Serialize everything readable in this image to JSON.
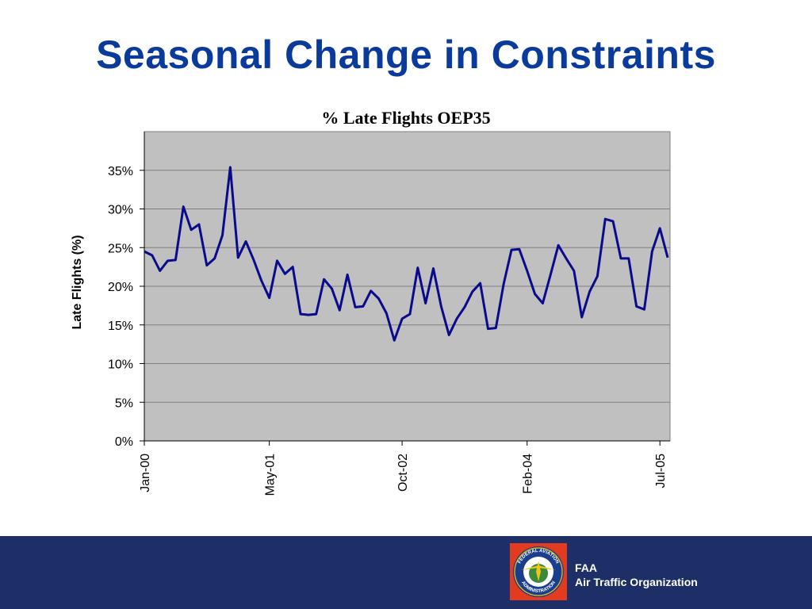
{
  "slide": {
    "title": "Seasonal Change in Constraints"
  },
  "footer": {
    "org_short": "FAA",
    "org_name": "Air Traffic Organization",
    "seal_text_top": "FEDERAL AVIATION",
    "seal_text_bottom": "ADMINISTRATION"
  },
  "colors": {
    "title": "#0a3a9a",
    "line": "#0a0a8c",
    "plot_bg": "#c0c0c0",
    "footer_bg": "#1d2f66"
  },
  "chart_data": {
    "type": "line",
    "title": "% Late Flights OEP35",
    "xlabel": "",
    "ylabel": "Late Flights (%)",
    "ylim": [
      0,
      40
    ],
    "yticks": [
      0,
      5,
      10,
      15,
      20,
      25,
      30,
      35
    ],
    "ytick_labels": [
      "0%",
      "5%",
      "10%",
      "15%",
      "20%",
      "25%",
      "30%",
      "35%"
    ],
    "xticks": [
      "Jan-00",
      "May-01",
      "Oct-02",
      "Feb-04",
      "Jul-05"
    ],
    "xtick_positions": [
      "2000-01",
      "2001-05",
      "2002-10",
      "2004-02",
      "2005-07"
    ],
    "grid": true,
    "legend": "none",
    "series": [
      {
        "values": [
          [
            "2000-01",
            24.5
          ],
          [
            "2000-02",
            24.0
          ],
          [
            "2000-03",
            22.0
          ],
          [
            "2000-04",
            23.3
          ],
          [
            "2000-05",
            23.4
          ],
          [
            "2000-06",
            30.3
          ],
          [
            "2000-07",
            27.3
          ],
          [
            "2000-08",
            28.0
          ],
          [
            "2000-09",
            22.7
          ],
          [
            "2000-10",
            23.6
          ],
          [
            "2000-11",
            26.6
          ],
          [
            "2000-12",
            35.4
          ],
          [
            "2001-01",
            23.7
          ],
          [
            "2001-02",
            25.8
          ],
          [
            "2001-03",
            23.4
          ],
          [
            "2001-04",
            20.7
          ],
          [
            "2001-05",
            18.5
          ],
          [
            "2001-06",
            23.3
          ],
          [
            "2001-07",
            21.6
          ],
          [
            "2001-08",
            22.5
          ],
          [
            "2001-09",
            16.4
          ],
          [
            "2001-10",
            16.3
          ],
          [
            "2001-11",
            16.4
          ],
          [
            "2001-12",
            20.9
          ],
          [
            "2002-01",
            19.7
          ],
          [
            "2002-02",
            16.9
          ],
          [
            "2002-03",
            21.5
          ],
          [
            "2002-04",
            17.3
          ],
          [
            "2002-05",
            17.4
          ],
          [
            "2002-06",
            19.4
          ],
          [
            "2002-07",
            18.4
          ],
          [
            "2002-08",
            16.5
          ],
          [
            "2002-09",
            13.0
          ],
          [
            "2002-10",
            15.8
          ],
          [
            "2002-11",
            16.4
          ],
          [
            "2002-12",
            22.4
          ],
          [
            "2003-01",
            17.8
          ],
          [
            "2003-02",
            22.3
          ],
          [
            "2003-03",
            17.4
          ],
          [
            "2003-04",
            13.7
          ],
          [
            "2003-05",
            15.8
          ],
          [
            "2003-06",
            17.3
          ],
          [
            "2003-07",
            19.3
          ],
          [
            "2003-08",
            20.4
          ],
          [
            "2003-09",
            14.5
          ],
          [
            "2003-10",
            14.6
          ],
          [
            "2003-11",
            20.3
          ],
          [
            "2003-12",
            24.7
          ],
          [
            "2004-01",
            24.8
          ],
          [
            "2004-02",
            22.0
          ],
          [
            "2004-03",
            19.0
          ],
          [
            "2004-04",
            17.8
          ],
          [
            "2004-05",
            21.5
          ],
          [
            "2004-06",
            25.3
          ],
          [
            "2004-07",
            23.6
          ],
          [
            "2004-08",
            22.0
          ],
          [
            "2004-09",
            16.0
          ],
          [
            "2004-10",
            19.3
          ],
          [
            "2004-11",
            21.3
          ],
          [
            "2004-12",
            28.7
          ],
          [
            "2005-01",
            28.4
          ],
          [
            "2005-02",
            23.6
          ],
          [
            "2005-03",
            23.6
          ],
          [
            "2005-04",
            17.4
          ],
          [
            "2005-05",
            17.0
          ],
          [
            "2005-06",
            24.5
          ],
          [
            "2005-07",
            27.5
          ],
          [
            "2005-08",
            23.7
          ]
        ]
      }
    ]
  }
}
